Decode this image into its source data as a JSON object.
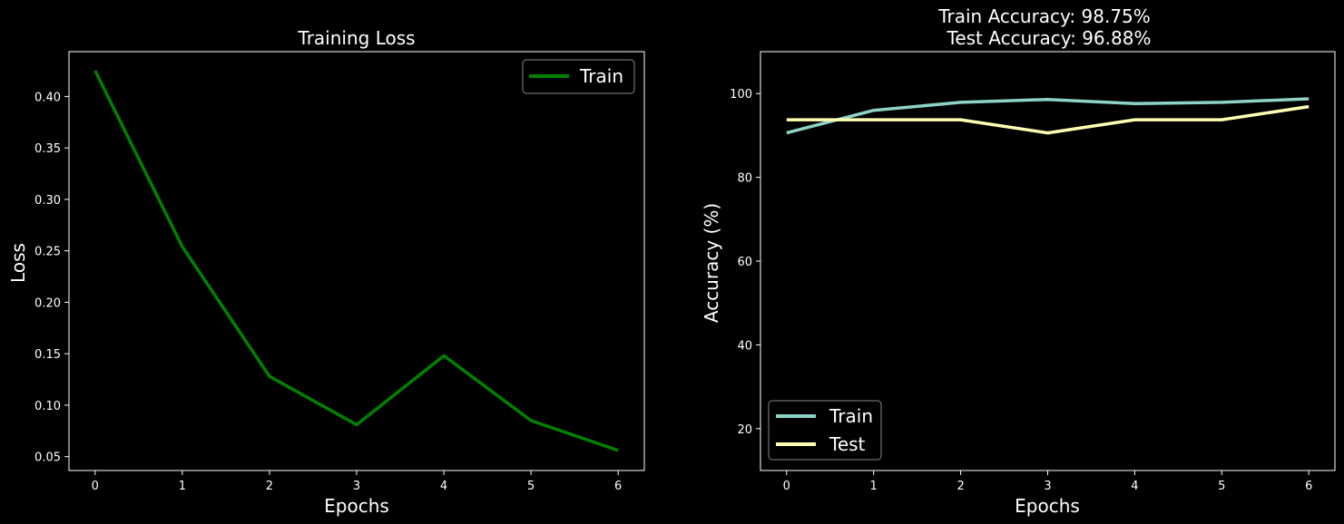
{
  "chart_data": [
    {
      "type": "line",
      "title": "Training Loss",
      "xlabel": "Epochs",
      "ylabel": "Loss",
      "xlim": [
        -0.3,
        6.3
      ],
      "ylim": [
        0.0365,
        0.4435
      ],
      "xticks": [
        0,
        1,
        2,
        3,
        4,
        5,
        6
      ],
      "yticks": [
        0.05,
        0.1,
        0.15,
        0.2,
        0.25,
        0.3,
        0.35,
        0.4
      ],
      "ytick_labels": [
        "0.05",
        "0.10",
        "0.15",
        "0.20",
        "0.25",
        "0.30",
        "0.35",
        "0.40"
      ],
      "grid": false,
      "legend": "upper right",
      "x": [
        0,
        1,
        2,
        3,
        4,
        5,
        6
      ],
      "series": [
        {
          "name": "Train",
          "color": "#008000",
          "values": [
            0.425,
            0.254,
            0.128,
            0.081,
            0.148,
            0.085,
            0.056
          ]
        }
      ]
    },
    {
      "type": "line",
      "title": "Train Accuracy: 98.75%",
      "subtitle": "Test Accuracy: 96.88%",
      "xlabel": "Epochs",
      "ylabel": "Accuracy (%)",
      "xlim": [
        -0.3,
        6.3
      ],
      "ylim": [
        10,
        110
      ],
      "xticks": [
        0,
        1,
        2,
        3,
        4,
        5,
        6
      ],
      "yticks": [
        20,
        40,
        60,
        80,
        100
      ],
      "ytick_labels": [
        "20",
        "40",
        "60",
        "80",
        "100"
      ],
      "grid": false,
      "legend": "lower left",
      "x": [
        0,
        1,
        2,
        3,
        4,
        5,
        6
      ],
      "series": [
        {
          "name": "Train",
          "color": "#8dd3c7",
          "values": [
            90.6,
            96.0,
            97.9,
            98.6,
            97.6,
            97.9,
            98.75
          ]
        },
        {
          "name": "Test",
          "color": "#ffffb3",
          "values": [
            93.75,
            93.75,
            93.75,
            90.6,
            93.75,
            93.75,
            96.88
          ]
        }
      ]
    }
  ]
}
